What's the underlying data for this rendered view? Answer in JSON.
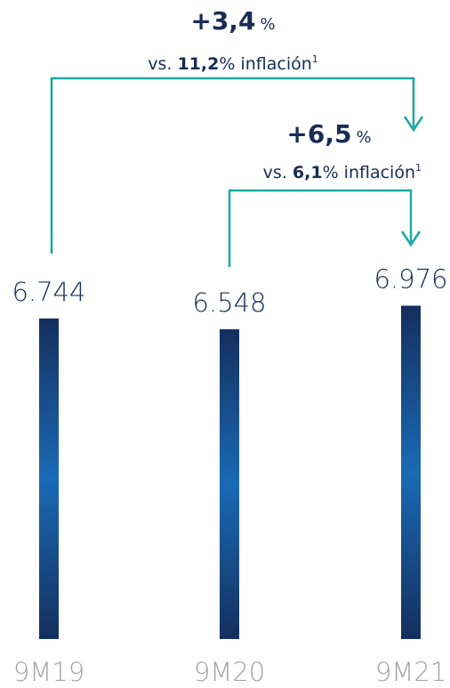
{
  "chart_data": {
    "type": "bar",
    "categories": [
      "9M19",
      "9M20",
      "9M21"
    ],
    "values": [
      6744,
      6548,
      6976
    ],
    "value_labels": [
      "6.744",
      "6.548",
      "6.976"
    ],
    "color": "#1664b0",
    "ylim": [
      900,
      7000
    ],
    "annotations": [
      {
        "change": "+3,4",
        "unit": "%",
        "prefix": "vs.",
        "inflation": "11,2",
        "suffix": "% inflación",
        "footnote": "1"
      },
      {
        "change": "+6,5",
        "unit": "%",
        "prefix": "vs.",
        "inflation": "6,1",
        "suffix": "% inflación",
        "footnote": "1"
      }
    ]
  }
}
